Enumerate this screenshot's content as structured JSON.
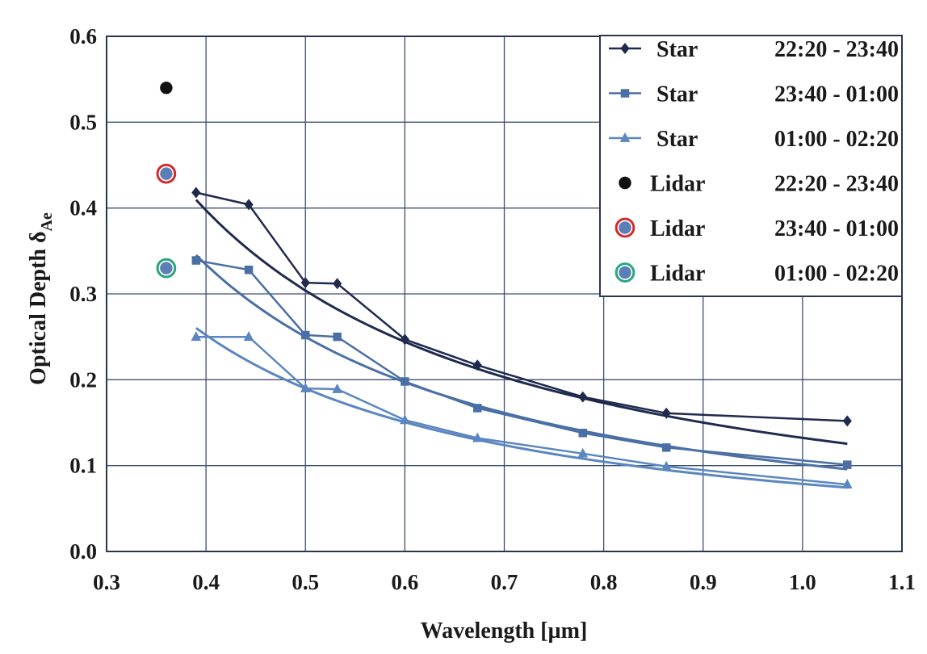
{
  "chart_data": {
    "type": "scatter",
    "xlabel": "Wavelength [µm]",
    "ylabel_main": "Optical Depth δ",
    "ylabel_sub": "Ae",
    "xlim": [
      0.3,
      1.1
    ],
    "ylim": [
      0.0,
      0.6
    ],
    "x_ticks": [
      "0.3",
      "0.4",
      "0.5",
      "0.6",
      "0.7",
      "0.8",
      "0.9",
      "1.0",
      "1.1"
    ],
    "y_ticks": [
      "0.0",
      "0.1",
      "0.2",
      "0.3",
      "0.4",
      "0.5",
      "0.6"
    ],
    "grid": true,
    "legend_position": "top-right",
    "series": [
      {
        "name": "Star 22:20 - 23:40",
        "label_a": "Star",
        "label_b": "22:20 - 23:40",
        "marker": "diamond",
        "color": "#1f2a4d",
        "x": [
          0.39,
          0.443,
          0.5,
          0.532,
          0.6,
          0.673,
          0.779,
          0.863,
          1.045
        ],
        "y": [
          0.418,
          0.404,
          0.313,
          0.312,
          0.247,
          0.217,
          0.18,
          0.161,
          0.152
        ],
        "fit": {
          "a": 0.1323,
          "b": 1.2,
          "x_range": [
            0.39,
            1.045
          ]
        }
      },
      {
        "name": "Star 23:40 - 01:00",
        "label_a": "Star",
        "label_b": "23:40 - 01:00",
        "marker": "square",
        "color": "#4a6fa5",
        "x": [
          0.39,
          0.443,
          0.5,
          0.532,
          0.6,
          0.673,
          0.779,
          0.863,
          1.045
        ],
        "y": [
          0.339,
          0.328,
          0.252,
          0.25,
          0.198,
          0.167,
          0.138,
          0.121,
          0.101
        ],
        "fit": {
          "a": 0.1015,
          "b": 1.3,
          "x_range": [
            0.39,
            1.045
          ]
        }
      },
      {
        "name": "Star 01:00 - 02:20",
        "label_a": "Star",
        "label_b": "01:00 - 02:20",
        "marker": "triangle",
        "color": "#5b86c0",
        "x": [
          0.39,
          0.443,
          0.5,
          0.532,
          0.6,
          0.673,
          0.779,
          0.863,
          1.045
        ],
        "y": [
          0.25,
          0.25,
          0.19,
          0.189,
          0.153,
          0.132,
          0.114,
          0.099,
          0.078
        ],
        "fit": {
          "a": 0.0787,
          "b": 1.27,
          "x_range": [
            0.39,
            1.045
          ]
        }
      },
      {
        "name": "Lidar 22:20 - 23:40",
        "label_a": "Lidar",
        "label_b": "22:20 - 23:40",
        "marker": "circle",
        "color": "#111111",
        "ring": "",
        "x": [
          0.36
        ],
        "y": [
          0.54
        ]
      },
      {
        "name": "Lidar 23:40 - 01:00",
        "label_a": "Lidar",
        "label_b": "23:40 - 01:00",
        "marker": "circle",
        "color": "#5b7fb5",
        "ring": "#d62a2a",
        "x": [
          0.36
        ],
        "y": [
          0.44
        ]
      },
      {
        "name": "Lidar 01:00 - 02:20",
        "label_a": "Lidar",
        "label_b": "01:00 - 02:20",
        "marker": "circle",
        "color": "#5b7fb5",
        "ring": "#2aa67a",
        "x": [
          0.36
        ],
        "y": [
          0.33
        ]
      }
    ]
  }
}
